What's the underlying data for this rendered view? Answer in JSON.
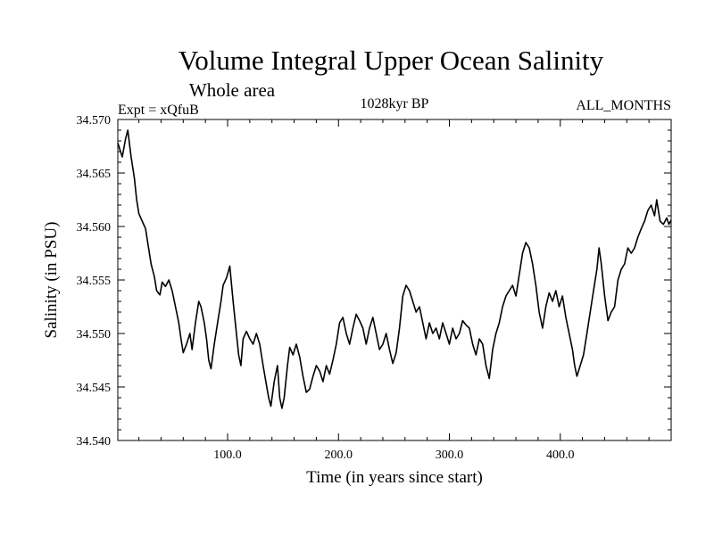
{
  "chart_data": {
    "type": "line",
    "title": "Volume Integral Upper Ocean Salinity",
    "subtitle": "Whole area",
    "experiment_label": "Expt = xQfuB",
    "period_label": "1028kyr BP",
    "months_label": "ALL_MONTHS",
    "xlabel": "Time (in years since start)",
    "ylabel": "Salinity (in PSU)",
    "xlim": [
      1,
      500
    ],
    "ylim": [
      34.54,
      34.57
    ],
    "x_ticks": [
      100,
      200,
      300,
      400
    ],
    "x_tick_labels": [
      "100.0",
      "200.0",
      "300.0",
      "400.0"
    ],
    "y_ticks": [
      34.54,
      34.545,
      34.55,
      34.555,
      34.56,
      34.565,
      34.57
    ],
    "y_tick_labels": [
      "34.540",
      "34.545",
      "34.550",
      "34.555",
      "34.560",
      "34.565",
      "34.570"
    ],
    "grid": false,
    "series": [
      {
        "name": "Salinity",
        "color": "#000000",
        "points": [
          [
            1,
            34.5678
          ],
          [
            5,
            34.5665
          ],
          [
            8,
            34.5682
          ],
          [
            10,
            34.569
          ],
          [
            13,
            34.5665
          ],
          [
            16,
            34.5645
          ],
          [
            18,
            34.5625
          ],
          [
            20,
            34.5612
          ],
          [
            23,
            34.5605
          ],
          [
            26,
            34.5598
          ],
          [
            28,
            34.5585
          ],
          [
            31,
            34.5565
          ],
          [
            34,
            34.5553
          ],
          [
            36,
            34.554
          ],
          [
            39,
            34.5536
          ],
          [
            41,
            34.5548
          ],
          [
            44,
            34.5544
          ],
          [
            47,
            34.555
          ],
          [
            50,
            34.554
          ],
          [
            53,
            34.5525
          ],
          [
            56,
            34.551
          ],
          [
            58,
            34.5495
          ],
          [
            60,
            34.5482
          ],
          [
            63,
            34.549
          ],
          [
            66,
            34.55
          ],
          [
            68,
            34.5485
          ],
          [
            71,
            34.551
          ],
          [
            74,
            34.553
          ],
          [
            76,
            34.5525
          ],
          [
            79,
            34.551
          ],
          [
            81,
            34.5495
          ],
          [
            83,
            34.5475
          ],
          [
            85,
            34.5467
          ],
          [
            88,
            34.549
          ],
          [
            91,
            34.551
          ],
          [
            94,
            34.553
          ],
          [
            96,
            34.5545
          ],
          [
            99,
            34.5552
          ],
          [
            102,
            34.5563
          ],
          [
            105,
            34.553
          ],
          [
            108,
            34.55
          ],
          [
            110,
            34.548
          ],
          [
            112,
            34.547
          ],
          [
            114,
            34.5495
          ],
          [
            117,
            34.5502
          ],
          [
            120,
            34.5495
          ],
          [
            123,
            34.549
          ],
          [
            126,
            34.55
          ],
          [
            129,
            34.549
          ],
          [
            132,
            34.547
          ],
          [
            135,
            34.5452
          ],
          [
            137,
            34.544
          ],
          [
            139,
            34.5432
          ],
          [
            142,
            34.5455
          ],
          [
            145,
            34.547
          ],
          [
            147,
            34.544
          ],
          [
            149,
            34.543
          ],
          [
            151,
            34.544
          ],
          [
            154,
            34.547
          ],
          [
            156,
            34.5487
          ],
          [
            159,
            34.548
          ],
          [
            162,
            34.549
          ],
          [
            165,
            34.5478
          ],
          [
            168,
            34.546
          ],
          [
            171,
            34.5445
          ],
          [
            174,
            34.5448
          ],
          [
            177,
            34.546
          ],
          [
            180,
            34.547
          ],
          [
            183,
            34.5465
          ],
          [
            186,
            34.5455
          ],
          [
            189,
            34.547
          ],
          [
            192,
            34.5462
          ],
          [
            195,
            34.5475
          ],
          [
            198,
            34.549
          ],
          [
            201,
            34.551
          ],
          [
            204,
            34.5515
          ],
          [
            207,
            34.55
          ],
          [
            210,
            34.549
          ],
          [
            213,
            34.5505
          ],
          [
            216,
            34.5518
          ],
          [
            219,
            34.5512
          ],
          [
            222,
            34.5505
          ],
          [
            225,
            34.549
          ],
          [
            228,
            34.5505
          ],
          [
            231,
            34.5515
          ],
          [
            234,
            34.55
          ],
          [
            237,
            34.5485
          ],
          [
            240,
            34.549
          ],
          [
            243,
            34.55
          ],
          [
            246,
            34.5485
          ],
          [
            249,
            34.5472
          ],
          [
            252,
            34.5482
          ],
          [
            255,
            34.5505
          ],
          [
            258,
            34.5535
          ],
          [
            261,
            34.5545
          ],
          [
            264,
            34.554
          ],
          [
            267,
            34.553
          ],
          [
            270,
            34.552
          ],
          [
            273,
            34.5525
          ],
          [
            276,
            34.551
          ],
          [
            279,
            34.5495
          ],
          [
            282,
            34.551
          ],
          [
            285,
            34.55
          ],
          [
            288,
            34.5505
          ],
          [
            291,
            34.5495
          ],
          [
            294,
            34.551
          ],
          [
            297,
            34.55
          ],
          [
            300,
            34.549
          ],
          [
            303,
            34.5505
          ],
          [
            306,
            34.5495
          ],
          [
            309,
            34.55
          ],
          [
            312,
            34.5512
          ],
          [
            315,
            34.5508
          ],
          [
            318,
            34.5505
          ],
          [
            321,
            34.549
          ],
          [
            324,
            34.548
          ],
          [
            327,
            34.5495
          ],
          [
            330,
            34.549
          ],
          [
            333,
            34.547
          ],
          [
            336,
            34.5458
          ],
          [
            339,
            34.5485
          ],
          [
            342,
            34.55
          ],
          [
            345,
            34.551
          ],
          [
            348,
            34.5525
          ],
          [
            351,
            34.5535
          ],
          [
            354,
            34.554
          ],
          [
            357,
            34.5545
          ],
          [
            360,
            34.5535
          ],
          [
            363,
            34.5555
          ],
          [
            366,
            34.5575
          ],
          [
            369,
            34.5585
          ],
          [
            372,
            34.558
          ],
          [
            375,
            34.5565
          ],
          [
            378,
            34.5545
          ],
          [
            381,
            34.552
          ],
          [
            384,
            34.5505
          ],
          [
            387,
            34.5525
          ],
          [
            390,
            34.5538
          ],
          [
            393,
            34.553
          ],
          [
            396,
            34.554
          ],
          [
            399,
            34.5525
          ],
          [
            402,
            34.5535
          ],
          [
            405,
            34.5515
          ],
          [
            408,
            34.55
          ],
          [
            411,
            34.5485
          ],
          [
            413,
            34.547
          ],
          [
            415,
            34.546
          ],
          [
            418,
            34.547
          ],
          [
            421,
            34.548
          ],
          [
            424,
            34.55
          ],
          [
            427,
            34.552
          ],
          [
            430,
            34.554
          ],
          [
            433,
            34.556
          ],
          [
            435,
            34.558
          ],
          [
            437,
            34.5565
          ],
          [
            440,
            34.5535
          ],
          [
            443,
            34.5512
          ],
          [
            446,
            34.552
          ],
          [
            449,
            34.5525
          ],
          [
            452,
            34.555
          ],
          [
            455,
            34.556
          ],
          [
            458,
            34.5565
          ],
          [
            461,
            34.558
          ],
          [
            464,
            34.5575
          ],
          [
            467,
            34.558
          ],
          [
            470,
            34.559
          ],
          [
            473,
            34.5598
          ],
          [
            476,
            34.5605
          ],
          [
            479,
            34.5615
          ],
          [
            482,
            34.562
          ],
          [
            485,
            34.561
          ],
          [
            487,
            34.5625
          ],
          [
            490,
            34.5605
          ],
          [
            493,
            34.5602
          ],
          [
            496,
            34.5608
          ],
          [
            498,
            34.5602
          ],
          [
            500,
            34.5606
          ]
        ]
      }
    ]
  }
}
